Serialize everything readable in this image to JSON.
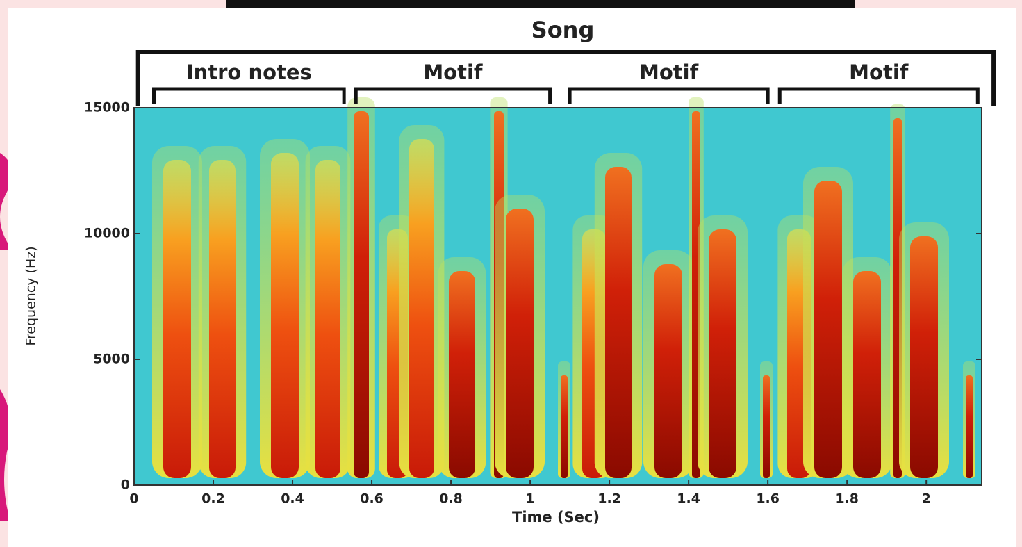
{
  "chart_data": {
    "type": "spectrogram",
    "title": "Song",
    "xlabel": "Time (Sec)",
    "ylabel": "Frequency (Hz)",
    "xlim": [
      0,
      2.14
    ],
    "xticks": [
      0,
      0.2,
      0.4,
      0.6,
      0.8,
      1,
      1.2,
      1.4,
      1.6,
      1.8,
      2
    ],
    "ylim": [
      0,
      15000
    ],
    "yticks": [
      0,
      5000,
      10000,
      15000
    ],
    "title_span": [
      0.01,
      2.17
    ],
    "annotations": [
      {
        "text": "Intro notes",
        "x": [
          0.05,
          0.53
        ]
      },
      {
        "text": "Motif",
        "x": [
          0.56,
          1.05
        ]
      },
      {
        "text": "Motif",
        "x": [
          1.1,
          1.6
        ]
      },
      {
        "text": "Motif",
        "x": [
          1.63,
          2.13
        ]
      }
    ]
  }
}
